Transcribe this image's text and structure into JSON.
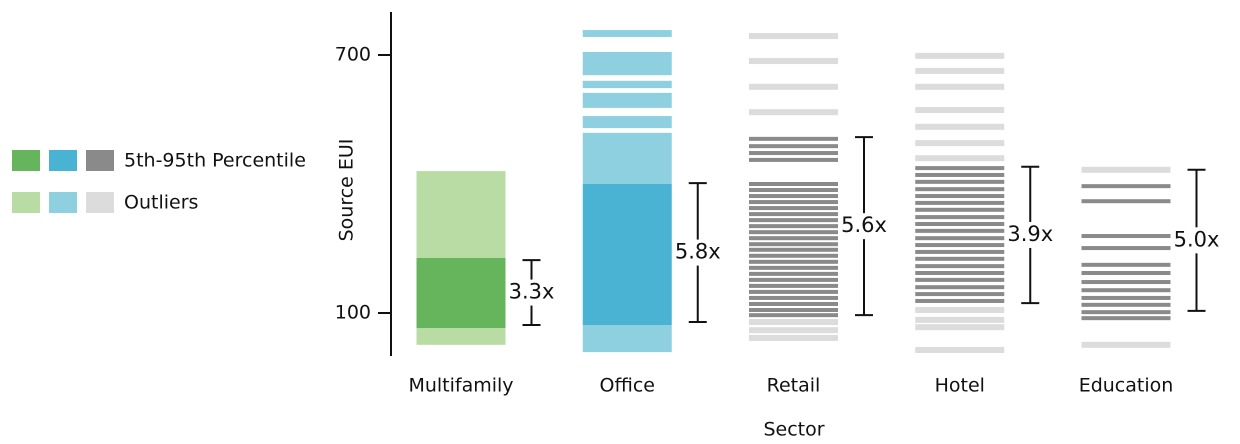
{
  "chart_data": {
    "type": "range-strip",
    "y_label": "Source EUI",
    "x_label": "Sector",
    "ylim": [
      0,
      800
    ],
    "yticks": [
      100,
      700
    ],
    "legend": {
      "percentile": "5th-95th Percentile",
      "outlier": "Outliers"
    },
    "sectors": [
      {
        "name": "Multifamily",
        "color_dark": "#66b45c",
        "color_light": "#b8dca4",
        "percentile_bands": [
          [
            65,
            228
          ]
        ],
        "outlier_bands": [
          [
            228,
            430
          ],
          [
            26,
            65
          ]
        ],
        "percentile_lines": [],
        "outlier_lines": [],
        "bracket": [
          72,
          223
        ],
        "ratio_label": "3.3x"
      },
      {
        "name": "Office",
        "color_dark": "#4ab3d3",
        "color_light": "#8ecfe0",
        "percentile_bands": [
          [
            72,
            400
          ]
        ],
        "outlier_bands": [
          [
            742,
            758
          ],
          [
            653,
            707
          ],
          [
            623,
            640
          ],
          [
            577,
            612
          ],
          [
            530,
            558
          ],
          [
            400,
            519
          ],
          [
            9,
            72
          ]
        ],
        "percentile_lines": [],
        "outlier_lines": [],
        "bracket": [
          79,
          402
        ],
        "ratio_label": "5.8x"
      },
      {
        "name": "Retail",
        "color_dark": "#8a8a8a",
        "color_light": "#dcdcdc",
        "percentile_bands": [],
        "outlier_bands": [],
        "percentile_lines": [
          505,
          488,
          472,
          456,
          400,
          386,
          372,
          358,
          344,
          330,
          316,
          302,
          288,
          274,
          260,
          247,
          233,
          219,
          205,
          191,
          177,
          163,
          149,
          135,
          121,
          107,
          95
        ],
        "outlier_lines": [
          744,
          686,
          626,
          567,
          79,
          60,
          42
        ],
        "bracket": [
          95,
          509
        ],
        "ratio_label": "5.6x"
      },
      {
        "name": "Hotel",
        "color_dark": "#8a8a8a",
        "color_light": "#dcdcdc",
        "percentile_bands": [],
        "outlier_bands": [],
        "percentile_lines": [
          437,
          421,
          405,
          388,
          372,
          356,
          340,
          323,
          307,
          291,
          274,
          258,
          242,
          226,
          209,
          193,
          177,
          160,
          144,
          128
        ],
        "outlier_lines": [
          698,
          663,
          626,
          572,
          533,
          495,
          460,
          107,
          84,
          67,
          14
        ],
        "bracket": [
          123,
          440
        ],
        "ratio_label": "3.9x"
      },
      {
        "name": "Education",
        "color_dark": "#8a8a8a",
        "color_light": "#dcdcdc",
        "percentile_bands": [],
        "outlier_bands": [],
        "percentile_lines": [
          395,
          360,
          279,
          251,
          212,
          193,
          172,
          153,
          135,
          119,
          102,
          88
        ],
        "outlier_lines": [
          433,
          26
        ],
        "bracket": [
          105,
          433
        ],
        "ratio_label": "5.0x"
      }
    ]
  }
}
